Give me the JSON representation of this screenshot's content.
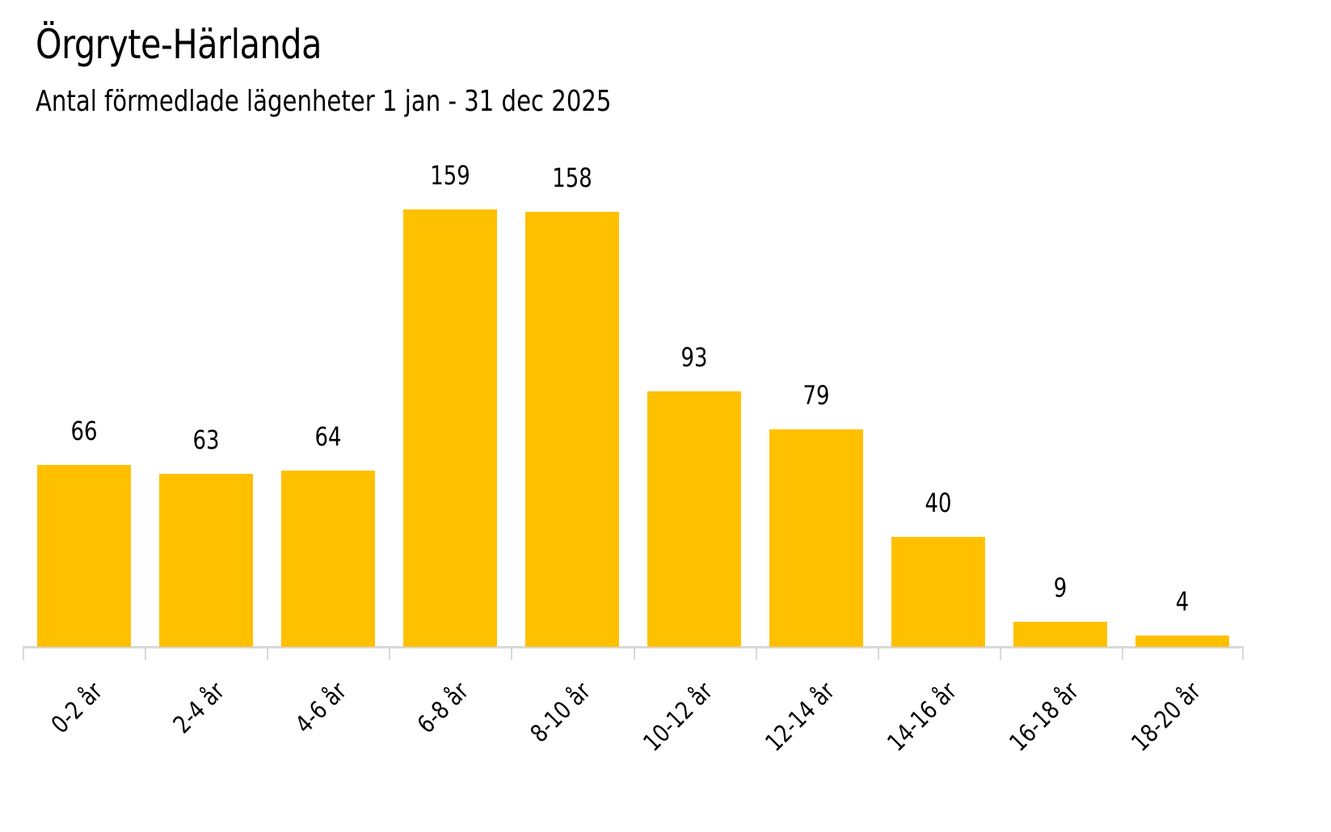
{
  "header": {
    "title": "Örgryte-Härlanda",
    "subtitle": "Antal förmedlade lägenheter 1 jan - 31 dec 2025"
  },
  "colors": {
    "bar": "#ffc000",
    "axis": "#d9d9d9",
    "text": "#000000"
  },
  "chart_data": {
    "type": "bar",
    "title": "Örgryte-Härlanda",
    "subtitle": "Antal förmedlade lägenheter 1 jan - 31 dec 2025",
    "xlabel": "",
    "ylabel": "",
    "categories": [
      "0-2 år",
      "2-4 år",
      "4-6 år",
      "6-8 år",
      "8-10 år",
      "10-12 år",
      "12-14 år",
      "14-16 år",
      "16-18 år",
      "18-20 år"
    ],
    "values": [
      66,
      63,
      64,
      159,
      158,
      93,
      79,
      40,
      9,
      4
    ],
    "data_labels": true,
    "grid": false,
    "legend": null,
    "ylim": [
      0,
      159
    ]
  }
}
